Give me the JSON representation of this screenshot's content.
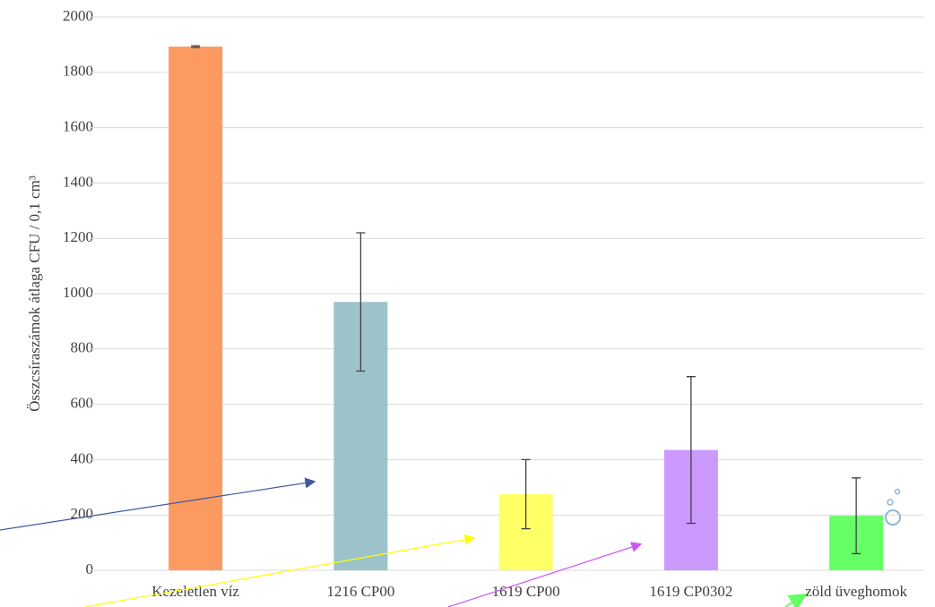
{
  "chart_data": {
    "type": "bar",
    "y_label": "Összcsíraszámok átlaga CFU / 0,1 cm³",
    "categories": [
      "Kezeletlen víz",
      "1216 CP00",
      "1619 CP00",
      "1619 CP0302",
      "zöld üveghomok"
    ],
    "values": [
      1893,
      970,
      275,
      435,
      197
    ],
    "errors": [
      3,
      250,
      125,
      265,
      137
    ],
    "colors": [
      "#fd9a62",
      "#9dc3ca",
      "#ffff66",
      "#cc99ff",
      "#66ff66"
    ],
    "ylim": [
      0,
      2000
    ],
    "yticks": [
      0,
      200,
      400,
      600,
      800,
      1000,
      1200,
      1400,
      1600,
      1800,
      2000
    ],
    "grid": true
  }
}
